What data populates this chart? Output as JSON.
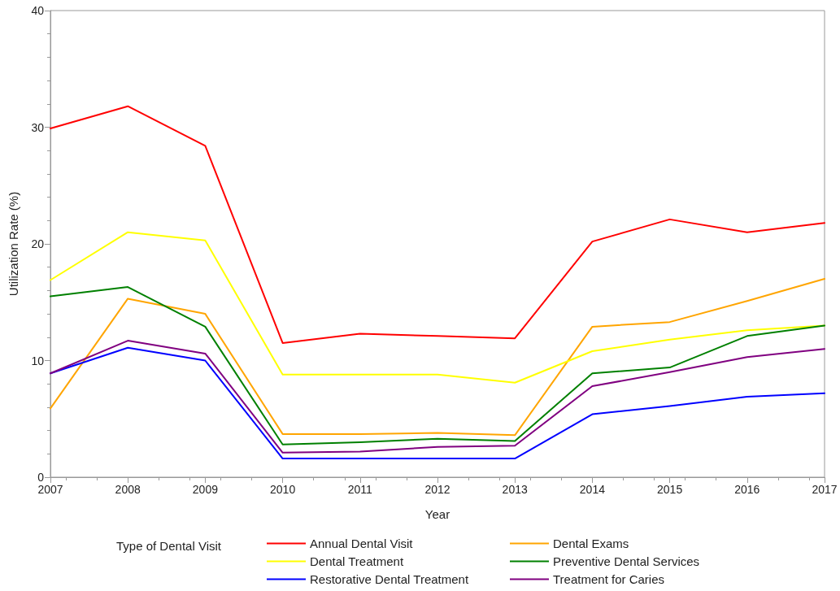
{
  "chart_data": {
    "type": "line",
    "xlabel": "Year",
    "ylabel": "Utilization Rate (%)",
    "legend_title": "Type of Dental Visit",
    "x": [
      2007,
      2008,
      2009,
      2010,
      2011,
      2012,
      2013,
      2014,
      2015,
      2016,
      2017
    ],
    "xlim": [
      2007,
      2017
    ],
    "xticks": [
      2007,
      2008,
      2009,
      2010,
      2011,
      2012,
      2013,
      2014,
      2015,
      2016,
      2017
    ],
    "ylim": [
      0,
      40
    ],
    "yticks": [
      0,
      10,
      20,
      30,
      40
    ],
    "grid": false,
    "legend": "bottom",
    "marker": "none",
    "line_style": "solid",
    "series": [
      {
        "name": "Annual Dental Visit",
        "color": "#ff0000",
        "values": [
          29.9,
          31.8,
          28.4,
          11.5,
          12.3,
          12.1,
          11.9,
          20.2,
          22.1,
          21.0,
          21.8
        ]
      },
      {
        "name": "Dental Exams",
        "color": "#ffa500",
        "values": [
          5.9,
          15.3,
          14.0,
          3.7,
          3.7,
          3.8,
          3.6,
          12.9,
          13.3,
          15.1,
          17.0
        ]
      },
      {
        "name": "Dental Treatment",
        "color": "#ffff00",
        "values": [
          16.9,
          21.0,
          20.3,
          8.8,
          8.8,
          8.8,
          8.1,
          10.8,
          11.8,
          12.6,
          13.0
        ]
      },
      {
        "name": "Preventive Dental Services",
        "color": "#008000",
        "values": [
          15.5,
          16.3,
          12.9,
          2.8,
          3.0,
          3.3,
          3.1,
          8.9,
          9.4,
          12.1,
          13.0
        ]
      },
      {
        "name": "Restorative Dental Treatment",
        "color": "#0000ff",
        "values": [
          8.9,
          11.1,
          10.0,
          1.6,
          1.6,
          1.6,
          1.6,
          5.4,
          6.1,
          6.9,
          7.2
        ]
      },
      {
        "name": "Treatment for Caries",
        "color": "#800080",
        "values": [
          8.9,
          11.7,
          10.6,
          2.1,
          2.2,
          2.6,
          2.7,
          7.8,
          9.0,
          10.3,
          11.0
        ]
      }
    ]
  }
}
